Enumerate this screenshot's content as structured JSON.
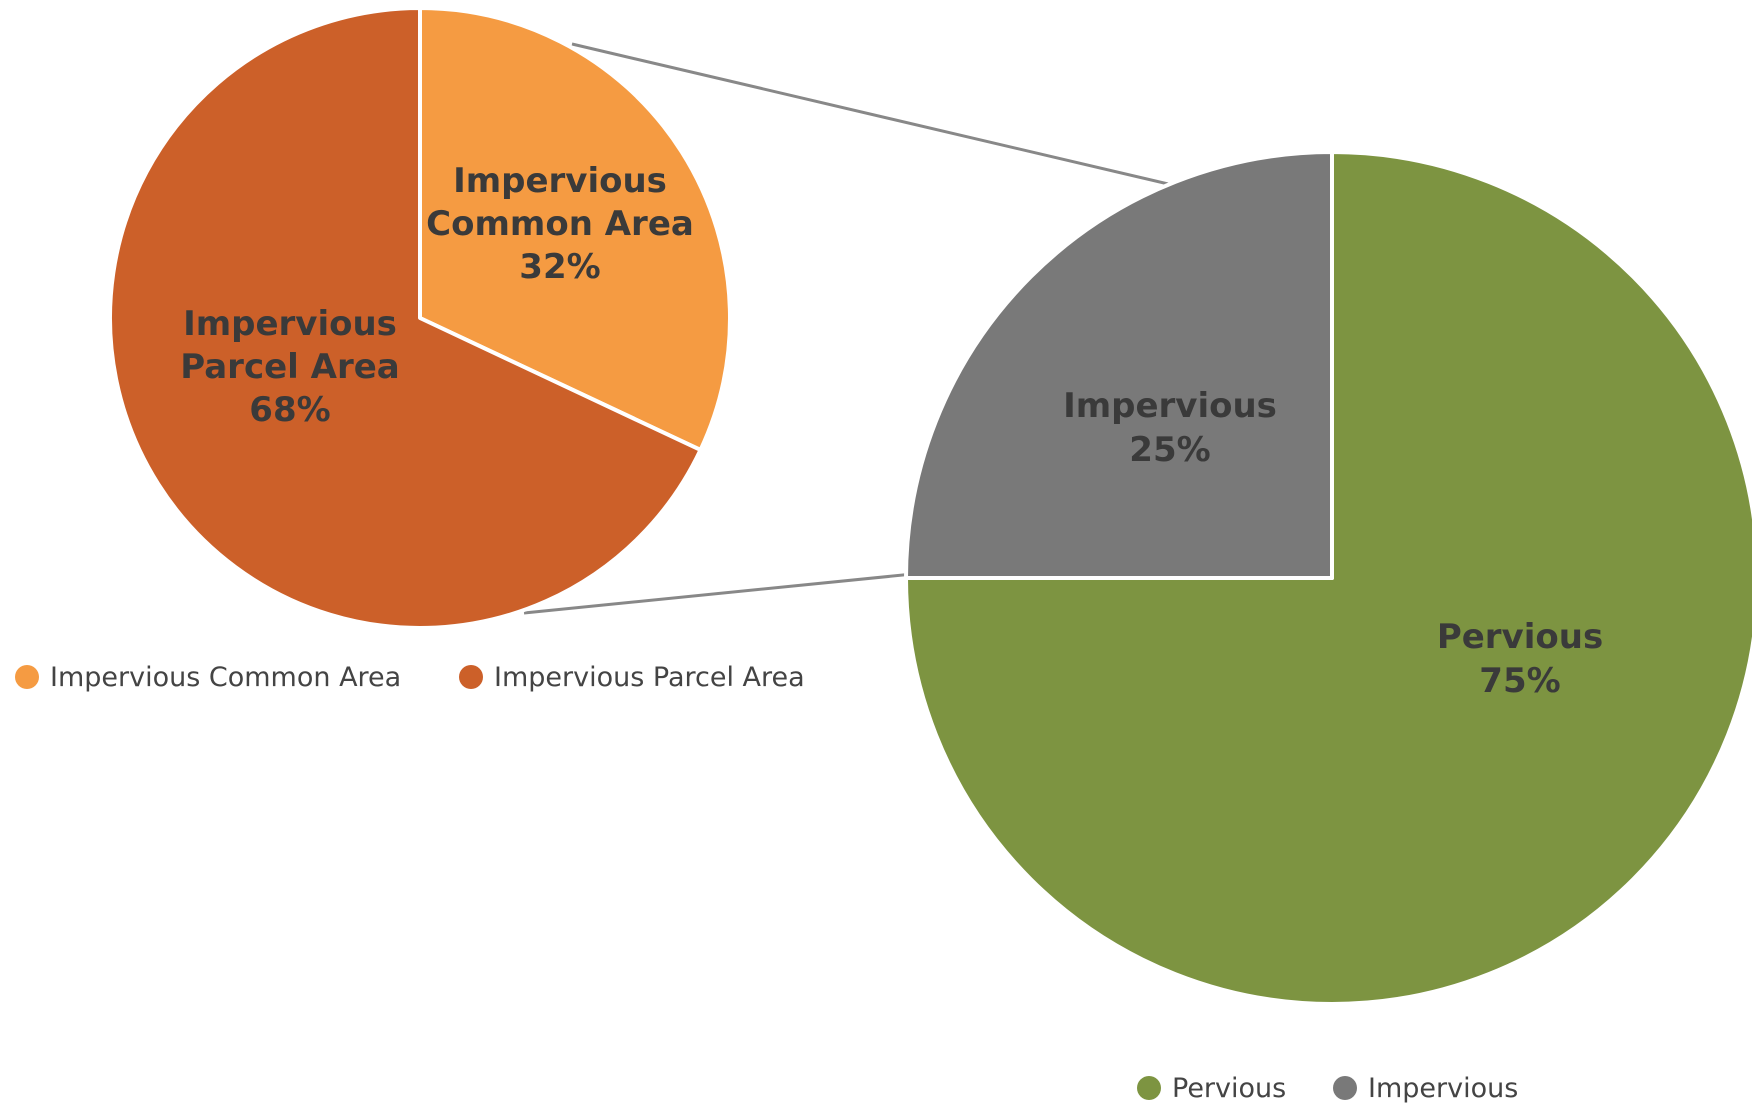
{
  "chart_data": [
    {
      "type": "pie",
      "categories": [
        "Impervious Common Area",
        "Impervious Parcel Area"
      ],
      "values": [
        32,
        68
      ],
      "unit": "%",
      "colors": [
        "#F59B42",
        "#CC6029"
      ],
      "slice_labels": [
        [
          "Impervious",
          "Common Area",
          "32%"
        ],
        [
          "Impervious",
          "Parcel Area",
          "68%"
        ]
      ],
      "legend": [
        "Impervious Common Area",
        "Impervious Parcel Area"
      ],
      "legend_position": "bottom"
    },
    {
      "type": "pie",
      "categories": [
        "Pervious",
        "Impervious"
      ],
      "values": [
        75,
        25
      ],
      "unit": "%",
      "colors": [
        "#7D9441",
        "#797979"
      ],
      "slice_labels": [
        [
          "Pervious",
          "75%"
        ],
        [
          "Impervious",
          "25%"
        ]
      ],
      "legend": [
        "Pervious",
        "Impervious"
      ],
      "legend_position": "bottom"
    }
  ]
}
